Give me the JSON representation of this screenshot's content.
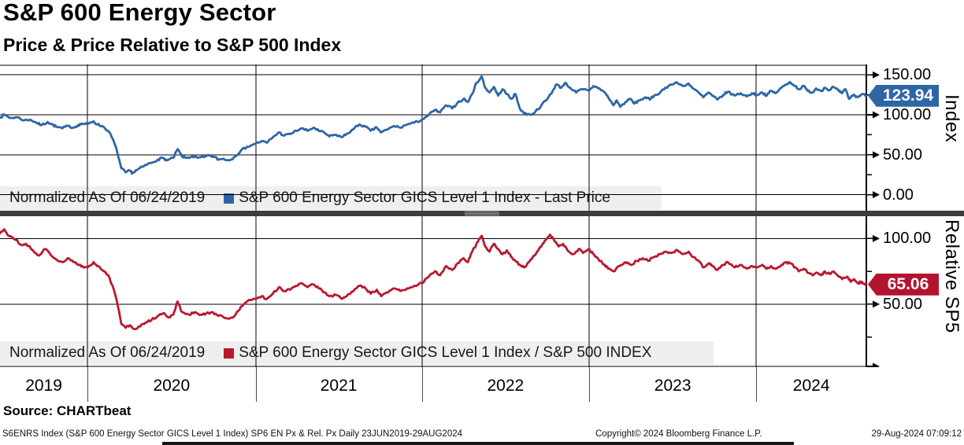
{
  "header": {
    "title": "S&P 600 Energy Sector",
    "subtitle": "Price & Price Relative to S&P 500 Index"
  },
  "source_line": "Source: CHARTbeat",
  "footer": {
    "left": "S6ENRS Index (S&P 600 Energy Sector GICS Level 1 Index) SP6 EN Px & Rel. Px  Daily 23JUN2019-29AUG2024",
    "center": "Copyright© 2024 Bloomberg Finance L.P.",
    "right": "29-Aug-2024 07:09:12"
  },
  "colors": {
    "price_line": "#2d66a5",
    "price_badge": "#2d66a5",
    "relative_line": "#b9182f",
    "relative_badge": "#b2142f",
    "grid": "#000000",
    "legend_bg": "#efefef",
    "divider": "#3c3c3c"
  },
  "x_axis": {
    "range_label": "23JUN2019-29AUG2024",
    "boundaries": [
      0.101,
      0.295,
      0.487,
      0.68,
      0.873
    ],
    "years": [
      {
        "label": "2019",
        "t": 0.0505
      },
      {
        "label": "2020",
        "t": 0.198
      },
      {
        "label": "2021",
        "t": 0.391
      },
      {
        "label": "2022",
        "t": 0.5835
      },
      {
        "label": "2023",
        "t": 0.7765
      },
      {
        "label": "2024",
        "t": 0.9365
      }
    ]
  },
  "chart_data": [
    {
      "type": "line",
      "name": "price",
      "axis_title": "Index",
      "legend_normalized": "Normalized As Of 06/24/2019",
      "legend_series": "S&P 600 Energy Sector GICS Level 1 Index - Last Price",
      "normalized_base": 100,
      "last_price": 123.94,
      "last_price_label": "123.94",
      "ylim": [
        -20,
        163
      ],
      "yticks": [
        {
          "v": 150,
          "label": "150.00"
        },
        {
          "v": 100,
          "label": "100.00"
        },
        {
          "v": 50,
          "label": "50.00"
        },
        {
          "v": 0,
          "label": "0.00"
        }
      ],
      "yticks_minor": [
        125,
        75,
        25
      ],
      "series": [
        [
          0,
          97
        ],
        [
          0.005,
          100
        ],
        [
          0.012,
          96
        ],
        [
          0.02,
          97
        ],
        [
          0.028,
          93
        ],
        [
          0.035,
          94
        ],
        [
          0.042,
          90
        ],
        [
          0.048,
          87
        ],
        [
          0.055,
          91
        ],
        [
          0.06,
          88
        ],
        [
          0.065,
          85
        ],
        [
          0.072,
          83
        ],
        [
          0.078,
          86
        ],
        [
          0.085,
          84
        ],
        [
          0.09,
          87
        ],
        [
          0.095,
          89
        ],
        [
          0.101,
          88
        ],
        [
          0.108,
          92
        ],
        [
          0.112,
          88
        ],
        [
          0.118,
          86
        ],
        [
          0.125,
          80
        ],
        [
          0.13,
          70
        ],
        [
          0.135,
          55
        ],
        [
          0.14,
          33
        ],
        [
          0.145,
          28
        ],
        [
          0.15,
          30
        ],
        [
          0.153,
          27
        ],
        [
          0.158,
          31
        ],
        [
          0.165,
          35
        ],
        [
          0.17,
          38
        ],
        [
          0.175,
          40
        ],
        [
          0.182,
          44
        ],
        [
          0.188,
          46
        ],
        [
          0.193,
          43
        ],
        [
          0.2,
          46
        ],
        [
          0.205,
          57
        ],
        [
          0.21,
          48
        ],
        [
          0.215,
          46
        ],
        [
          0.222,
          48
        ],
        [
          0.228,
          46
        ],
        [
          0.235,
          47
        ],
        [
          0.242,
          49
        ],
        [
          0.248,
          47
        ],
        [
          0.252,
          44
        ],
        [
          0.258,
          45
        ],
        [
          0.265,
          43
        ],
        [
          0.27,
          47
        ],
        [
          0.278,
          55
        ],
        [
          0.285,
          60
        ],
        [
          0.295,
          64
        ],
        [
          0.302,
          67
        ],
        [
          0.308,
          65
        ],
        [
          0.315,
          72
        ],
        [
          0.322,
          78
        ],
        [
          0.328,
          74
        ],
        [
          0.335,
          76
        ],
        [
          0.342,
          80
        ],
        [
          0.348,
          83
        ],
        [
          0.355,
          80
        ],
        [
          0.362,
          84
        ],
        [
          0.368,
          80
        ],
        [
          0.375,
          77
        ],
        [
          0.38,
          73
        ],
        [
          0.388,
          75
        ],
        [
          0.395,
          72
        ],
        [
          0.4,
          76
        ],
        [
          0.408,
          82
        ],
        [
          0.415,
          88
        ],
        [
          0.422,
          85
        ],
        [
          0.428,
          80
        ],
        [
          0.435,
          84
        ],
        [
          0.44,
          78
        ],
        [
          0.448,
          82
        ],
        [
          0.455,
          86
        ],
        [
          0.462,
          84
        ],
        [
          0.47,
          88
        ],
        [
          0.478,
          90
        ],
        [
          0.487,
          94
        ],
        [
          0.495,
          100
        ],
        [
          0.502,
          106
        ],
        [
          0.508,
          103
        ],
        [
          0.515,
          112
        ],
        [
          0.522,
          108
        ],
        [
          0.528,
          115
        ],
        [
          0.535,
          120
        ],
        [
          0.54,
          116
        ],
        [
          0.545,
          126
        ],
        [
          0.55,
          140
        ],
        [
          0.556,
          148
        ],
        [
          0.56,
          134
        ],
        [
          0.565,
          128
        ],
        [
          0.57,
          135
        ],
        [
          0.575,
          124
        ],
        [
          0.58,
          132
        ],
        [
          0.585,
          126
        ],
        [
          0.59,
          120
        ],
        [
          0.595,
          126
        ],
        [
          0.6,
          108
        ],
        [
          0.605,
          102
        ],
        [
          0.612,
          100
        ],
        [
          0.618,
          104
        ],
        [
          0.625,
          112
        ],
        [
          0.632,
          120
        ],
        [
          0.638,
          130
        ],
        [
          0.642,
          138
        ],
        [
          0.648,
          134
        ],
        [
          0.652,
          140
        ],
        [
          0.658,
          134
        ],
        [
          0.665,
          128
        ],
        [
          0.672,
          132
        ],
        [
          0.68,
          130
        ],
        [
          0.685,
          136
        ],
        [
          0.692,
          133
        ],
        [
          0.698,
          128
        ],
        [
          0.702,
          122
        ],
        [
          0.708,
          112
        ],
        [
          0.712,
          118
        ],
        [
          0.716,
          110
        ],
        [
          0.722,
          116
        ],
        [
          0.728,
          120
        ],
        [
          0.732,
          114
        ],
        [
          0.738,
          118
        ],
        [
          0.745,
          122
        ],
        [
          0.75,
          119
        ],
        [
          0.755,
          124
        ],
        [
          0.762,
          128
        ],
        [
          0.768,
          134
        ],
        [
          0.775,
          138
        ],
        [
          0.782,
          140
        ],
        [
          0.788,
          136
        ],
        [
          0.795,
          139
        ],
        [
          0.8,
          133
        ],
        [
          0.808,
          126
        ],
        [
          0.812,
          122
        ],
        [
          0.818,
          128
        ],
        [
          0.822,
          124
        ],
        [
          0.828,
          119
        ],
        [
          0.835,
          125
        ],
        [
          0.84,
          129
        ],
        [
          0.848,
          124
        ],
        [
          0.855,
          127
        ],
        [
          0.862,
          123
        ],
        [
          0.868,
          127
        ],
        [
          0.873,
          125
        ],
        [
          0.88,
          128
        ],
        [
          0.885,
          124
        ],
        [
          0.89,
          130
        ],
        [
          0.895,
          127
        ],
        [
          0.902,
          134
        ],
        [
          0.908,
          138
        ],
        [
          0.912,
          141
        ],
        [
          0.918,
          136
        ],
        [
          0.922,
          132
        ],
        [
          0.928,
          136
        ],
        [
          0.932,
          130
        ],
        [
          0.938,
          128
        ],
        [
          0.942,
          133
        ],
        [
          0.948,
          130
        ],
        [
          0.952,
          134
        ],
        [
          0.958,
          131
        ],
        [
          0.962,
          135
        ],
        [
          0.968,
          130
        ],
        [
          0.972,
          127
        ],
        [
          0.976,
          132
        ],
        [
          0.98,
          120
        ],
        [
          0.985,
          125
        ],
        [
          0.99,
          122
        ],
        [
          0.995,
          126
        ],
        [
          1,
          123.94
        ]
      ]
    },
    {
      "type": "line",
      "name": "relative",
      "axis_title": "Relative SP5",
      "legend_normalized": "Normalized As Of 06/24/2019",
      "legend_series": "S&P 600 Energy Sector GICS Level 1 Index / S&P 500 INDEX",
      "normalized_base": 100,
      "last_price": 65.06,
      "last_price_label": "65.06",
      "ylim": [
        2,
        117
      ],
      "yticks": [
        {
          "v": 100,
          "label": "100.00"
        },
        {
          "v": 50,
          "label": "50.00"
        }
      ],
      "yticks_minor": [
        75,
        25
      ],
      "series": [
        [
          0,
          104
        ],
        [
          0.005,
          107
        ],
        [
          0.01,
          102
        ],
        [
          0.018,
          99
        ],
        [
          0.025,
          95
        ],
        [
          0.03,
          96
        ],
        [
          0.038,
          91
        ],
        [
          0.045,
          87
        ],
        [
          0.052,
          92
        ],
        [
          0.058,
          88
        ],
        [
          0.065,
          84
        ],
        [
          0.072,
          82
        ],
        [
          0.078,
          85
        ],
        [
          0.085,
          82
        ],
        [
          0.09,
          80
        ],
        [
          0.095,
          79
        ],
        [
          0.101,
          78
        ],
        [
          0.108,
          82
        ],
        [
          0.112,
          79
        ],
        [
          0.118,
          76
        ],
        [
          0.125,
          72
        ],
        [
          0.13,
          64
        ],
        [
          0.135,
          52
        ],
        [
          0.14,
          35
        ],
        [
          0.145,
          32
        ],
        [
          0.15,
          34
        ],
        [
          0.155,
          31
        ],
        [
          0.162,
          33
        ],
        [
          0.168,
          36
        ],
        [
          0.175,
          38
        ],
        [
          0.182,
          41
        ],
        [
          0.188,
          43
        ],
        [
          0.195,
          40
        ],
        [
          0.2,
          42
        ],
        [
          0.205,
          52
        ],
        [
          0.21,
          44
        ],
        [
          0.218,
          42
        ],
        [
          0.225,
          44
        ],
        [
          0.232,
          42
        ],
        [
          0.238,
          43
        ],
        [
          0.245,
          44
        ],
        [
          0.25,
          42
        ],
        [
          0.258,
          40
        ],
        [
          0.265,
          39
        ],
        [
          0.272,
          42
        ],
        [
          0.278,
          48
        ],
        [
          0.285,
          52
        ],
        [
          0.295,
          54
        ],
        [
          0.302,
          56
        ],
        [
          0.308,
          54
        ],
        [
          0.315,
          58
        ],
        [
          0.322,
          63
        ],
        [
          0.328,
          60
        ],
        [
          0.335,
          61
        ],
        [
          0.342,
          64
        ],
        [
          0.348,
          66
        ],
        [
          0.355,
          63
        ],
        [
          0.362,
          65
        ],
        [
          0.368,
          62
        ],
        [
          0.375,
          59
        ],
        [
          0.38,
          56
        ],
        [
          0.388,
          57
        ],
        [
          0.395,
          54
        ],
        [
          0.4,
          56
        ],
        [
          0.408,
          60
        ],
        [
          0.415,
          64
        ],
        [
          0.422,
          62
        ],
        [
          0.428,
          58
        ],
        [
          0.435,
          61
        ],
        [
          0.44,
          56
        ],
        [
          0.448,
          59
        ],
        [
          0.455,
          62
        ],
        [
          0.462,
          60
        ],
        [
          0.47,
          62
        ],
        [
          0.478,
          64
        ],
        [
          0.487,
          66
        ],
        [
          0.495,
          71
        ],
        [
          0.502,
          75
        ],
        [
          0.508,
          72
        ],
        [
          0.515,
          79
        ],
        [
          0.522,
          76
        ],
        [
          0.528,
          81
        ],
        [
          0.535,
          85
        ],
        [
          0.54,
          82
        ],
        [
          0.545,
          90
        ],
        [
          0.552,
          98
        ],
        [
          0.556,
          102
        ],
        [
          0.56,
          94
        ],
        [
          0.565,
          90
        ],
        [
          0.57,
          96
        ],
        [
          0.575,
          92
        ],
        [
          0.58,
          88
        ],
        [
          0.585,
          91
        ],
        [
          0.59,
          86
        ],
        [
          0.595,
          83
        ],
        [
          0.6,
          80
        ],
        [
          0.605,
          78
        ],
        [
          0.61,
          82
        ],
        [
          0.615,
          86
        ],
        [
          0.62,
          90
        ],
        [
          0.625,
          94
        ],
        [
          0.63,
          99
        ],
        [
          0.635,
          103
        ],
        [
          0.64,
          98
        ],
        [
          0.645,
          94
        ],
        [
          0.65,
          96
        ],
        [
          0.655,
          91
        ],
        [
          0.662,
          88
        ],
        [
          0.668,
          92
        ],
        [
          0.673,
          89
        ],
        [
          0.68,
          92
        ],
        [
          0.685,
          88
        ],
        [
          0.69,
          85
        ],
        [
          0.698,
          80
        ],
        [
          0.702,
          77
        ],
        [
          0.708,
          75
        ],
        [
          0.715,
          79
        ],
        [
          0.722,
          82
        ],
        [
          0.728,
          80
        ],
        [
          0.735,
          83
        ],
        [
          0.742,
          85
        ],
        [
          0.748,
          83
        ],
        [
          0.755,
          86
        ],
        [
          0.762,
          88
        ],
        [
          0.768,
          90
        ],
        [
          0.775,
          89
        ],
        [
          0.782,
          91
        ],
        [
          0.788,
          88
        ],
        [
          0.795,
          90
        ],
        [
          0.8,
          86
        ],
        [
          0.808,
          82
        ],
        [
          0.812,
          78
        ],
        [
          0.818,
          81
        ],
        [
          0.822,
          79
        ],
        [
          0.828,
          76
        ],
        [
          0.835,
          80
        ],
        [
          0.84,
          82
        ],
        [
          0.848,
          78
        ],
        [
          0.855,
          80
        ],
        [
          0.862,
          77
        ],
        [
          0.868,
          79
        ],
        [
          0.873,
          78
        ],
        [
          0.88,
          80
        ],
        [
          0.885,
          77
        ],
        [
          0.89,
          79
        ],
        [
          0.895,
          77
        ],
        [
          0.902,
          80
        ],
        [
          0.908,
          82
        ],
        [
          0.912,
          81
        ],
        [
          0.918,
          78
        ],
        [
          0.922,
          75
        ],
        [
          0.928,
          77
        ],
        [
          0.932,
          74
        ],
        [
          0.938,
          72
        ],
        [
          0.942,
          74
        ],
        [
          0.948,
          72
        ],
        [
          0.952,
          75
        ],
        [
          0.958,
          73
        ],
        [
          0.962,
          75
        ],
        [
          0.968,
          71
        ],
        [
          0.972,
          69
        ],
        [
          0.978,
          71
        ],
        [
          0.982,
          67
        ],
        [
          0.986,
          69
        ],
        [
          0.99,
          66
        ],
        [
          0.995,
          67
        ],
        [
          1,
          65.06
        ]
      ]
    }
  ]
}
